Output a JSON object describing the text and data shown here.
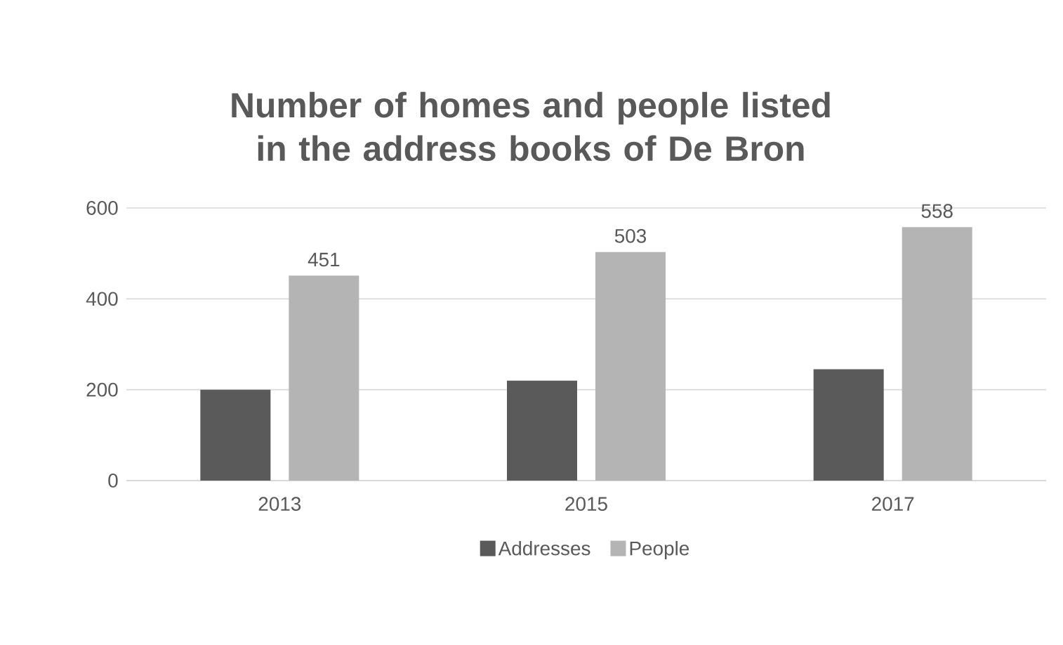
{
  "chart_data": {
    "type": "bar",
    "title": "Number of homes and people listed in the address books of De Bron",
    "categories": [
      "2013",
      "2015",
      "2017"
    ],
    "series": [
      {
        "name": "Addresses",
        "color": "#5a5a5a",
        "values": [
          200,
          220,
          245
        ]
      },
      {
        "name": "People",
        "color": "#b4b4b4",
        "values": [
          451,
          503,
          558
        ],
        "value_labels": [
          "451",
          "503",
          "558"
        ]
      }
    ],
    "ylim": [
      0,
      600
    ],
    "yticks": [
      0,
      200,
      400,
      600
    ],
    "grid": "y",
    "legend": "bottom"
  }
}
